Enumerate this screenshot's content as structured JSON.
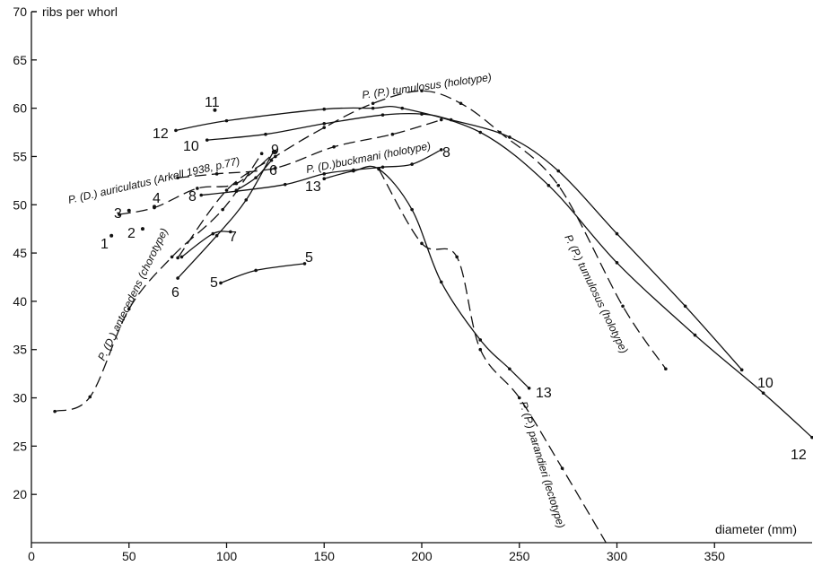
{
  "chart_data": {
    "type": "line",
    "title": "",
    "xlabel": "diameter (mm)",
    "ylabel": "ribs per whorl",
    "xlim": [
      0,
      400
    ],
    "ylim": [
      15,
      70
    ],
    "xticks": [
      0,
      50,
      100,
      150,
      200,
      250,
      300,
      350
    ],
    "yticks": [
      20,
      25,
      30,
      35,
      40,
      45,
      50,
      55,
      60,
      65,
      70
    ],
    "grid": false,
    "series": [
      {
        "name": "P. (D.) antecedens (chorotype)",
        "style": "dashed",
        "x": [
          12,
          30,
          50,
          72,
          98,
          118
        ],
        "y": [
          28.6,
          30.1,
          39.2,
          44.6,
          49.5,
          55.3
        ]
      },
      {
        "name": "P. (D.) auriculatus (Arkell 1938, p.77)",
        "style": "dashed",
        "x": [
          45,
          63,
          85,
          105,
          125
        ],
        "y": [
          49.0,
          49.7,
          51.7,
          52.2,
          55.5
        ]
      },
      {
        "name": "P. (D.) buckmani (holotype)",
        "style": "dashed",
        "x": [
          75,
          95,
          125,
          155,
          185,
          210
        ],
        "y": [
          52.8,
          53.2,
          53.8,
          56.0,
          57.3,
          58.8
        ]
      },
      {
        "name": "P. (P.) tumulosus (holotype)",
        "style": "dashed",
        "x": [
          75,
          100,
          125,
          150,
          175,
          200,
          220,
          240,
          270,
          303,
          325
        ],
        "y": [
          44.5,
          51.5,
          55.0,
          58.0,
          60.5,
          61.8,
          60.5,
          57.5,
          52.0,
          39.5,
          33.0
        ]
      },
      {
        "name": "P. (P.) parandieri (lectotype)",
        "style": "dashed",
        "x": [
          178,
          200,
          218,
          230,
          250,
          272,
          295
        ],
        "y": [
          53.7,
          46.0,
          44.6,
          35.0,
          30.0,
          22.7,
          14.8
        ]
      },
      {
        "name": "12",
        "style": "solid",
        "x": [
          74,
          100,
          150,
          175,
          190,
          230,
          265,
          300,
          340,
          375,
          400
        ],
        "y": [
          57.7,
          58.7,
          59.9,
          60.0,
          60.0,
          57.5,
          52.0,
          44.0,
          36.5,
          30.5,
          25.9
        ]
      },
      {
        "name": "10",
        "style": "solid",
        "x": [
          90,
          120,
          150,
          180,
          200,
          215,
          245,
          270,
          300,
          335,
          364
        ],
        "y": [
          56.7,
          57.3,
          58.4,
          59.3,
          59.4,
          58.8,
          57.0,
          53.5,
          47.0,
          39.5,
          32.9
        ]
      },
      {
        "name": "13",
        "style": "solid",
        "x": [
          150,
          165,
          178,
          195,
          210,
          230,
          245,
          255
        ],
        "y": [
          52.7,
          53.5,
          53.7,
          49.5,
          42.0,
          36.0,
          33.0,
          31.0
        ]
      },
      {
        "name": "5",
        "style": "solid",
        "x": [
          97,
          115,
          140
        ],
        "y": [
          41.9,
          43.2,
          43.9
        ]
      },
      {
        "name": "6",
        "style": "solid",
        "x": [
          75,
          95,
          110,
          124
        ],
        "y": [
          42.4,
          46.8,
          50.5,
          55.5
        ]
      },
      {
        "name": "7",
        "style": "solid",
        "x": [
          77,
          93,
          102
        ],
        "y": [
          44.6,
          47.0,
          47.2
        ]
      },
      {
        "name": "8",
        "style": "solid",
        "x": [
          87,
          105,
          130,
          150,
          165,
          180,
          195,
          210
        ],
        "y": [
          51.0,
          51.4,
          52.1,
          53.2,
          53.6,
          53.9,
          54.2,
          55.7
        ]
      },
      {
        "name": "9",
        "style": "solid",
        "x": [
          105,
          115,
          123
        ],
        "y": [
          51.5,
          52.8,
          54.6
        ]
      }
    ],
    "isolated_points": [
      {
        "label": "1",
        "x": 41,
        "y": 46.8
      },
      {
        "label": "2",
        "x": 57,
        "y": 47.5
      },
      {
        "label": "3",
        "x": 50,
        "y": 49.4
      },
      {
        "label": "4",
        "x": 63,
        "y": 49.8
      },
      {
        "label": "11",
        "x": 94,
        "y": 59.8
      }
    ],
    "curve_number_labels": [
      "1",
      "2",
      "3",
      "4",
      "5",
      "5",
      "6",
      "6",
      "7",
      "8",
      "8",
      "9",
      "10",
      "10",
      "11",
      "12",
      "12",
      "13",
      "13"
    ],
    "series_labels": [
      "P. (D.) antecedens (chorotype)",
      "P. (D.) auriculatus (Arkell 1938, p.77)",
      "P. (D.)buckmani (holotype)",
      "P. (P.) tumulosus (holotype)",
      "P. (P.) tumulosus (holotype)",
      "P. (P.) parandieri (lectotype)"
    ]
  }
}
